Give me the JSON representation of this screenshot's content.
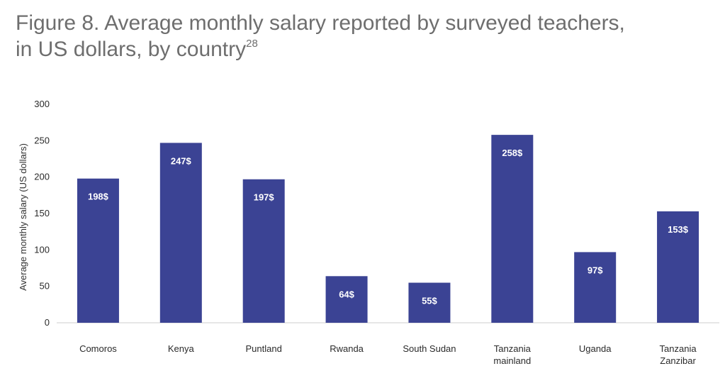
{
  "title": {
    "line1": "Figure 8. Average monthly salary reported by surveyed teachers,",
    "line2": "in US dollars, by country",
    "footnote": "28"
  },
  "chart_data": {
    "type": "bar",
    "categories": [
      [
        "Comoros"
      ],
      [
        "Kenya"
      ],
      [
        "Puntland"
      ],
      [
        "Rwanda"
      ],
      [
        "South Sudan"
      ],
      [
        "Tanzania",
        "mainland"
      ],
      [
        "Uganda"
      ],
      [
        "Tanzania",
        "Zanzibar"
      ]
    ],
    "values": [
      198,
      247,
      197,
      64,
      55,
      258,
      97,
      153
    ],
    "data_labels": [
      "198$",
      "247$",
      "197$",
      "64$",
      "55$",
      "258$",
      "97$",
      "153$"
    ],
    "ylabel": "Average monthly salary (US dollars)",
    "xlabel": "",
    "ylim": [
      0,
      300
    ],
    "yticks": [
      0,
      50,
      100,
      150,
      200,
      250,
      300
    ],
    "grid": false,
    "bar_color": "#3b4394",
    "axis_color": "#cccccc"
  }
}
